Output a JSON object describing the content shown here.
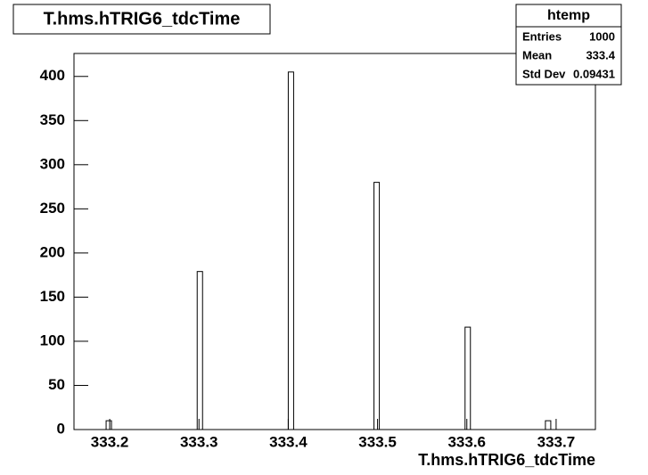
{
  "chart_data": {
    "type": "histogram",
    "title": "T.hms.hTRIG6_tdcTime",
    "x_label": "T.hms.hTRIG6_tdcTime",
    "stats": {
      "title": "htemp",
      "rows": [
        [
          "Entries",
          1000
        ],
        [
          "Mean",
          333.4
        ],
        [
          "Std Dev",
          0.09431
        ]
      ]
    },
    "bins": [
      333.16,
      333.166,
      333.172,
      333.178,
      333.184,
      333.19,
      333.196,
      333.202,
      333.208,
      333.214,
      333.22,
      333.226,
      333.232,
      333.238,
      333.244,
      333.25,
      333.256,
      333.262,
      333.268,
      333.274,
      333.28,
      333.286,
      333.292,
      333.298,
      333.304,
      333.31,
      333.316,
      333.322,
      333.328,
      333.334,
      333.34,
      333.346,
      333.352,
      333.358,
      333.364,
      333.37,
      333.376,
      333.382,
      333.388,
      333.394,
      333.4,
      333.406,
      333.412,
      333.418,
      333.424,
      333.43,
      333.436,
      333.442,
      333.448,
      333.454,
      333.46,
      333.466,
      333.472,
      333.478,
      333.484,
      333.49,
      333.496,
      333.502,
      333.508,
      333.514,
      333.52,
      333.526,
      333.532,
      333.538,
      333.544,
      333.55,
      333.556,
      333.562,
      333.568,
      333.574,
      333.58,
      333.586,
      333.592,
      333.598,
      333.604,
      333.61,
      333.616,
      333.622,
      333.628,
      333.634,
      333.64,
      333.646,
      333.652,
      333.658,
      333.664,
      333.67,
      333.676,
      333.682,
      333.688,
      333.694,
      333.7,
      333.706,
      333.712,
      333.718,
      333.724,
      333.73,
      333.736,
      333.742
    ],
    "values": [
      0,
      0,
      0,
      0,
      0,
      0,
      10,
      0,
      0,
      0,
      0,
      0,
      0,
      0,
      0,
      0,
      0,
      0,
      0,
      0,
      0,
      0,
      0,
      179,
      0,
      0,
      0,
      0,
      0,
      0,
      0,
      0,
      0,
      0,
      0,
      0,
      0,
      0,
      0,
      0,
      405,
      0,
      0,
      0,
      0,
      0,
      0,
      0,
      0,
      0,
      0,
      0,
      0,
      0,
      0,
      0,
      280,
      0,
      0,
      0,
      0,
      0,
      0,
      0,
      0,
      0,
      0,
      0,
      0,
      0,
      0,
      0,
      0,
      116,
      0,
      0,
      0,
      0,
      0,
      0,
      0,
      0,
      0,
      0,
      0,
      0,
      0,
      0,
      10,
      0,
      0,
      0,
      0,
      0,
      0,
      0,
      0
    ],
    "color": "#000000",
    "xlim": [
      333.16,
      333.744
    ],
    "xticks": [
      333.2,
      333.3,
      333.4,
      333.5,
      333.6,
      333.7
    ],
    "ylim": [
      0,
      426
    ],
    "yticks": [
      0,
      50,
      100,
      150,
      200,
      250,
      300,
      350,
      400
    ]
  }
}
